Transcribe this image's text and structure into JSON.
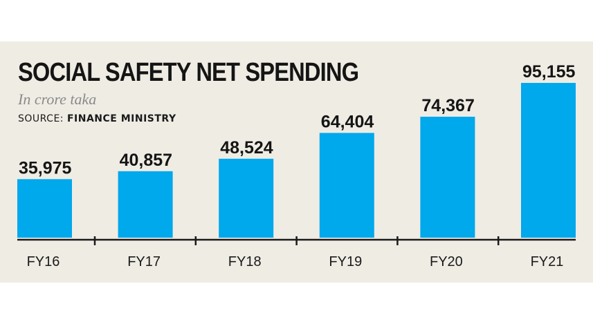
{
  "header": {
    "title": "SOCIAL SAFETY NET SPENDING",
    "subtitle": "In crore taka",
    "source_prefix": "SOURCE: ",
    "source_name": "FINANCE MINISTRY"
  },
  "colors": {
    "bar": "#00a8ec",
    "background": "#efece4",
    "axis": "#1a1a1a"
  },
  "chart_data": {
    "type": "bar",
    "title": "SOCIAL SAFETY NET SPENDING",
    "subtitle": "In crore taka",
    "source": "SOURCE: FINANCE MINISTRY",
    "categories": [
      "FY16",
      "FY17",
      "FY18",
      "FY19",
      "FY20",
      "FY21"
    ],
    "values": [
      35975,
      40857,
      48524,
      64404,
      74367,
      95155
    ],
    "value_labels": [
      "35,975",
      "40,857",
      "48,524",
      "64,404",
      "74,367",
      "95,155"
    ],
    "xlabel": "",
    "ylabel": "",
    "grid": false
  }
}
